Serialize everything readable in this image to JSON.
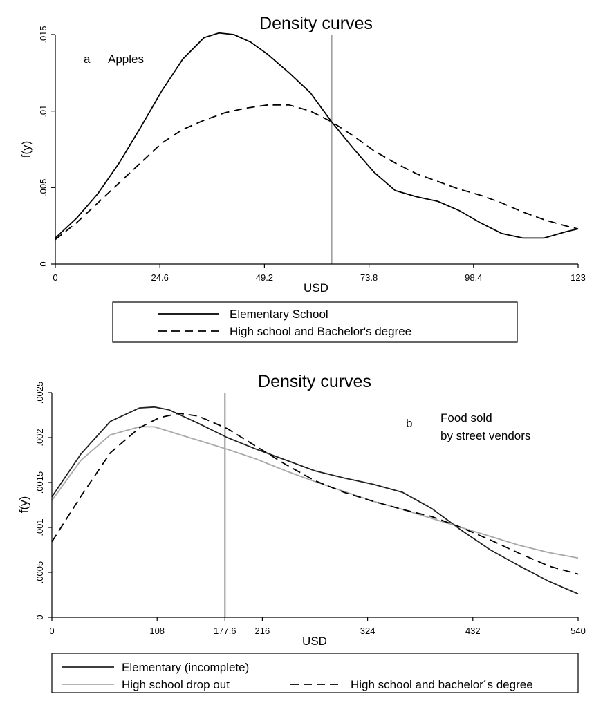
{
  "chart_data": [
    {
      "type": "line",
      "title": "Density curves",
      "annotation_letter": "a",
      "annotation_text": [
        "Apples"
      ],
      "xlabel": "USD",
      "ylabel": "f(y)",
      "xlim": [
        0,
        123
      ],
      "ylim": [
        0,
        0.015
      ],
      "xticks": [
        "0",
        "24.6",
        "49.2",
        "73.8",
        "98.4",
        "123"
      ],
      "xtick_values": [
        0,
        24.6,
        49.2,
        73.8,
        98.4,
        123
      ],
      "yticks": [
        "0",
        ".005",
        ".01",
        ".015"
      ],
      "ytick_values": [
        0,
        0.005,
        0.01,
        0.015
      ],
      "vline": 65,
      "vline_color": "#a0a0a0",
      "series": [
        {
          "name": "Elementary School",
          "style": "solid",
          "color": "#000000",
          "x": [
            0,
            5,
            10,
            15,
            20,
            25,
            30,
            35,
            38.5,
            42,
            46,
            50,
            55,
            60,
            65,
            70,
            75,
            80,
            85,
            90,
            95,
            100,
            105,
            110,
            115,
            120,
            123
          ],
          "y": [
            0.0017,
            0.003,
            0.0046,
            0.0066,
            0.0089,
            0.0113,
            0.0134,
            0.0148,
            0.0151,
            0.015,
            0.0145,
            0.0137,
            0.0125,
            0.0112,
            0.0093,
            0.0076,
            0.006,
            0.0048,
            0.0044,
            0.0041,
            0.0035,
            0.0027,
            0.002,
            0.0017,
            0.0017,
            0.0021,
            0.0023
          ]
        },
        {
          "name": "High school  and Bachelor's degree",
          "style": "dashed",
          "color": "#000000",
          "x": [
            0,
            5,
            10,
            15,
            20,
            25,
            30,
            35,
            40,
            45,
            50,
            55,
            60,
            65,
            70,
            75,
            80,
            85,
            90,
            95,
            100,
            105,
            110,
            115,
            120,
            123
          ],
          "y": [
            0.0016,
            0.0027,
            0.004,
            0.0053,
            0.0066,
            0.0079,
            0.0088,
            0.0094,
            0.0099,
            0.0102,
            0.0104,
            0.0104,
            0.01,
            0.0093,
            0.0084,
            0.0074,
            0.0066,
            0.0059,
            0.0054,
            0.0049,
            0.0045,
            0.004,
            0.0034,
            0.0029,
            0.0025,
            0.0023
          ]
        }
      ],
      "legend_layout": "stacked"
    },
    {
      "type": "line",
      "title": "Density curves",
      "annotation_letter": "b",
      "annotation_text": [
        "Food sold",
        "by street vendors"
      ],
      "xlabel": "USD",
      "ylabel": "f(y)",
      "xlim": [
        0,
        540
      ],
      "ylim": [
        0,
        0.0025
      ],
      "xticks": [
        "0",
        "108",
        "177.6",
        "216",
        "324",
        "432",
        "540"
      ],
      "xtick_values": [
        0,
        108,
        177.6,
        216,
        324,
        432,
        540
      ],
      "yticks": [
        "0",
        ".0005",
        ".001",
        ".0015",
        ".002",
        ".0025"
      ],
      "ytick_values": [
        0,
        0.0005,
        0.001,
        0.0015,
        0.002,
        0.0025
      ],
      "vline": 177.6,
      "vline_color": "#a0a0a0",
      "series": [
        {
          "name": "Elementary (incomplete)",
          "style": "solid",
          "color": "#222222",
          "x": [
            0,
            30,
            60,
            90,
            105,
            120,
            150,
            180,
            210,
            240,
            270,
            300,
            330,
            360,
            390,
            420,
            450,
            480,
            510,
            540
          ],
          "y": [
            0.00134,
            0.00182,
            0.00218,
            0.00233,
            0.00234,
            0.00231,
            0.00216,
            0.002,
            0.00187,
            0.00175,
            0.00163,
            0.00155,
            0.00148,
            0.00139,
            0.00121,
            0.00097,
            0.00075,
            0.00057,
            0.0004,
            0.00026
          ]
        },
        {
          "name": "High school drop out",
          "style": "solid",
          "color": "#a8a8a8",
          "x": [
            0,
            30,
            60,
            90,
            105,
            120,
            150,
            180,
            210,
            240,
            270,
            300,
            330,
            360,
            390,
            420,
            450,
            480,
            510,
            540
          ],
          "y": [
            0.0013,
            0.00175,
            0.00203,
            0.00212,
            0.00212,
            0.00207,
            0.00197,
            0.00187,
            0.00176,
            0.00163,
            0.00151,
            0.0014,
            0.00129,
            0.0012,
            0.0011,
            0.001,
            0.0009,
            0.0008,
            0.00072,
            0.00066
          ]
        },
        {
          "name": "High school and bachelor´s degree",
          "style": "dashed",
          "color": "#000000",
          "x": [
            0,
            30,
            60,
            90,
            110,
            130,
            150,
            180,
            210,
            240,
            270,
            300,
            330,
            360,
            390,
            420,
            450,
            480,
            510,
            540
          ],
          "y": [
            0.00084,
            0.00135,
            0.00183,
            0.00211,
            0.00222,
            0.00227,
            0.00224,
            0.0021,
            0.0019,
            0.0017,
            0.00152,
            0.00139,
            0.00129,
            0.0012,
            0.00112,
            0.001,
            0.00086,
            0.00071,
            0.00057,
            0.00048
          ]
        }
      ],
      "legend_layout": "two-column"
    }
  ]
}
